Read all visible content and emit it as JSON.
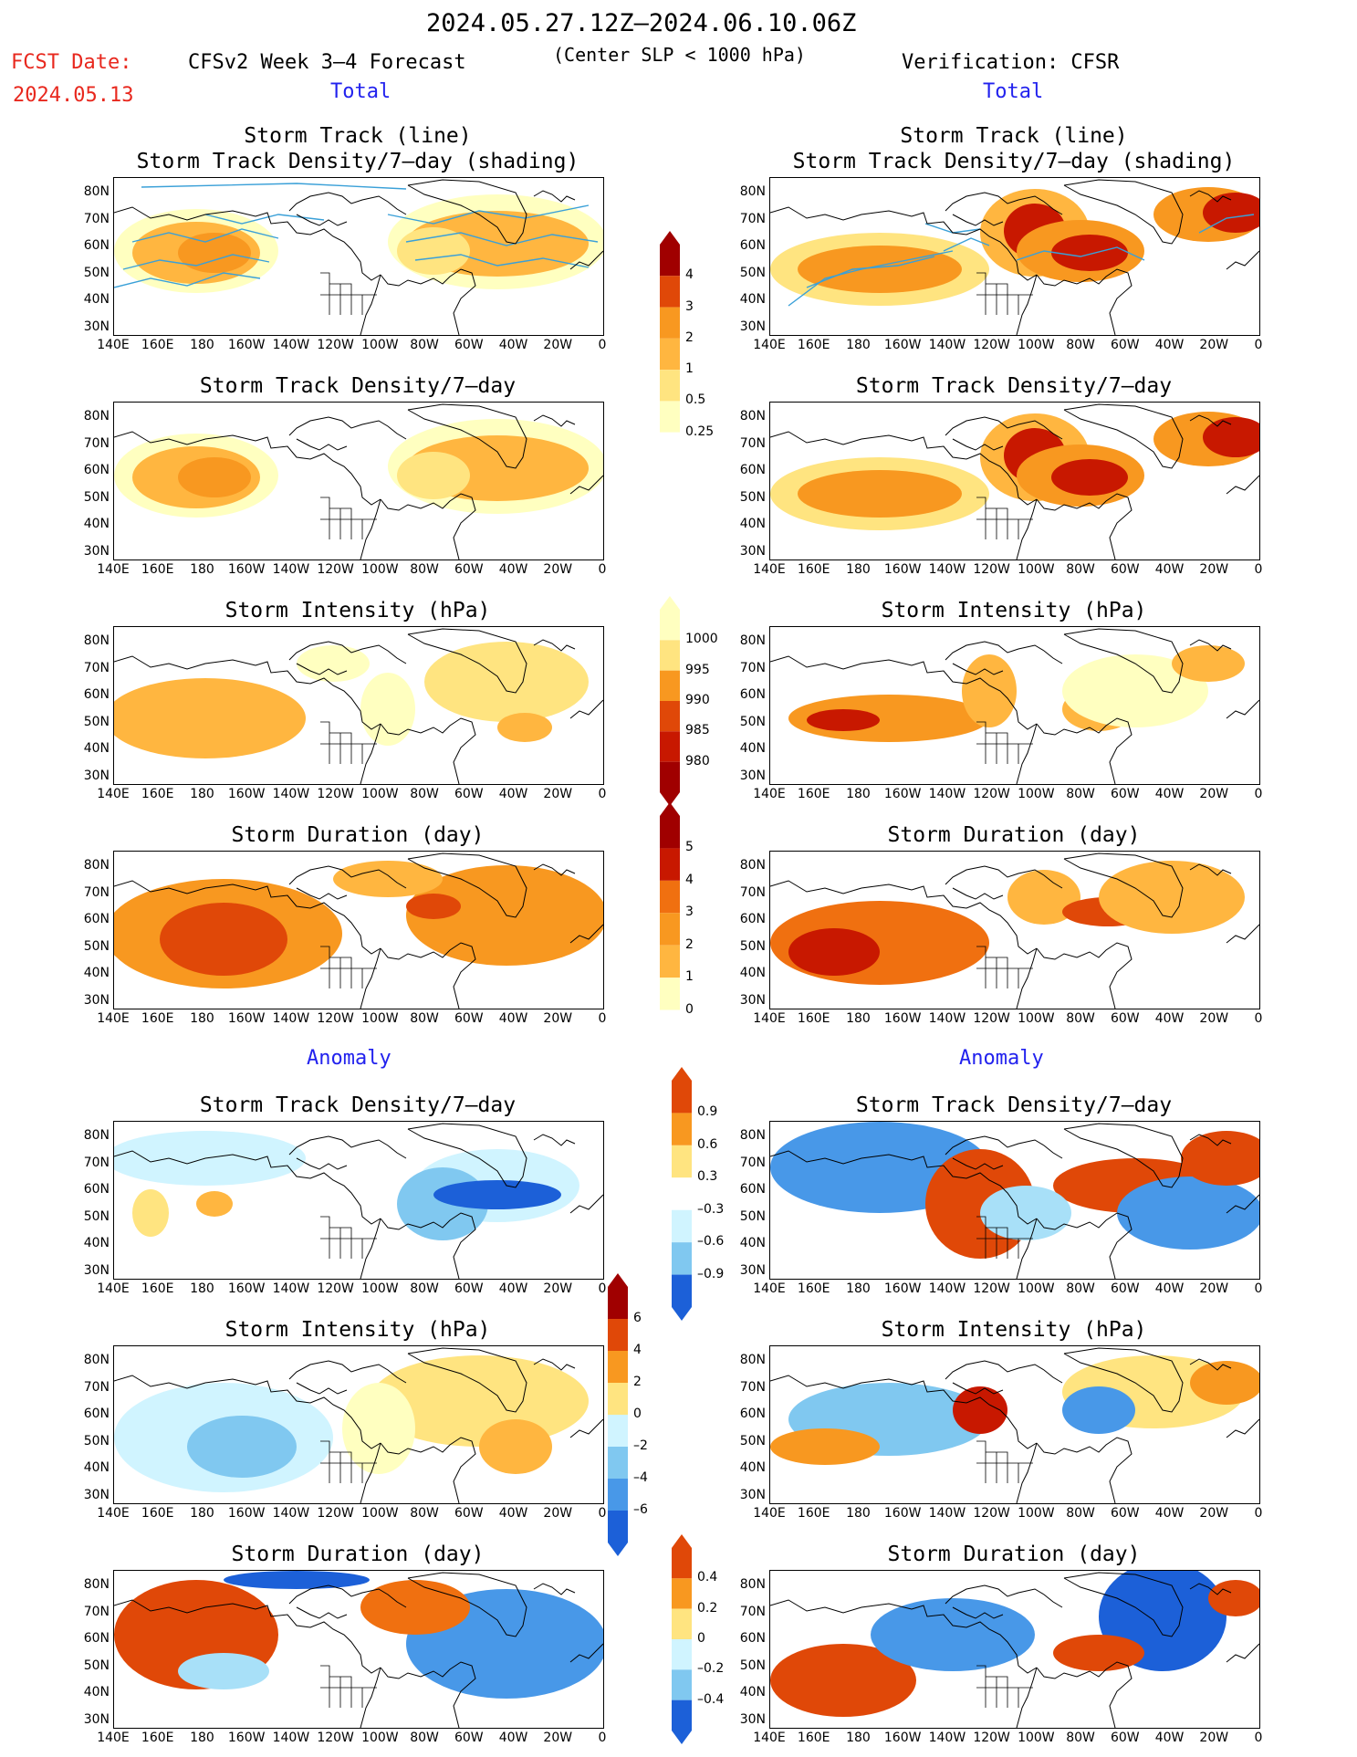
{
  "header": {
    "period": "2024.05.27.12Z–2024.06.10.06Z",
    "fcst_label": "FCST Date:",
    "fcst_date": "2024.05.13",
    "model": "CFSv2 Week 3–4 Forecast",
    "criterion": "(Center SLP < 1000 hPa)",
    "verification": "Verification: CFSR"
  },
  "sections": {
    "total": "Total",
    "anomaly": "Anomaly"
  },
  "panels": {
    "track": [
      "Storm Track (line)",
      "Storm Track Density/7–day (shading)"
    ],
    "density": "Storm Track Density/7–day",
    "intensity": "Storm Intensity (hPa)",
    "duration": "Storm Duration (day)"
  },
  "axes": {
    "lat": [
      "80N",
      "70N",
      "60N",
      "50N",
      "40N",
      "30N"
    ],
    "lon": [
      "140E",
      "160E",
      "180",
      "160W",
      "140W",
      "120W",
      "100W",
      "80W",
      "60W",
      "40W",
      "20W",
      "0"
    ]
  },
  "colorbars": {
    "density": [
      "4",
      "3",
      "2",
      "1",
      "0.5",
      "0.25"
    ],
    "intensity": [
      "1000",
      "995",
      "990",
      "985",
      "980"
    ],
    "duration": [
      "5",
      "4",
      "3",
      "2",
      "1",
      "0"
    ],
    "density_anom": [
      "0.9",
      "0.6",
      "0.3",
      "–0.3",
      "–0.6",
      "–0.9"
    ],
    "intensity_anom": [
      "6",
      "4",
      "2",
      "0",
      "–2",
      "–4",
      "–6"
    ],
    "duration_anom": [
      "0.4",
      "0.2",
      "0",
      "–0.2",
      "–0.4"
    ]
  },
  "colors": {
    "warm": [
      "#ffffc0",
      "#ffe480",
      "#ffb640",
      "#f89820",
      "#f07010",
      "#e04808",
      "#c81800",
      "#a00000"
    ],
    "cool": [
      "#d0f4ff",
      "#a8e0f8",
      "#80c8f0",
      "#4898e8",
      "#1c60d8"
    ],
    "track_line": "#3aa0d8"
  }
}
